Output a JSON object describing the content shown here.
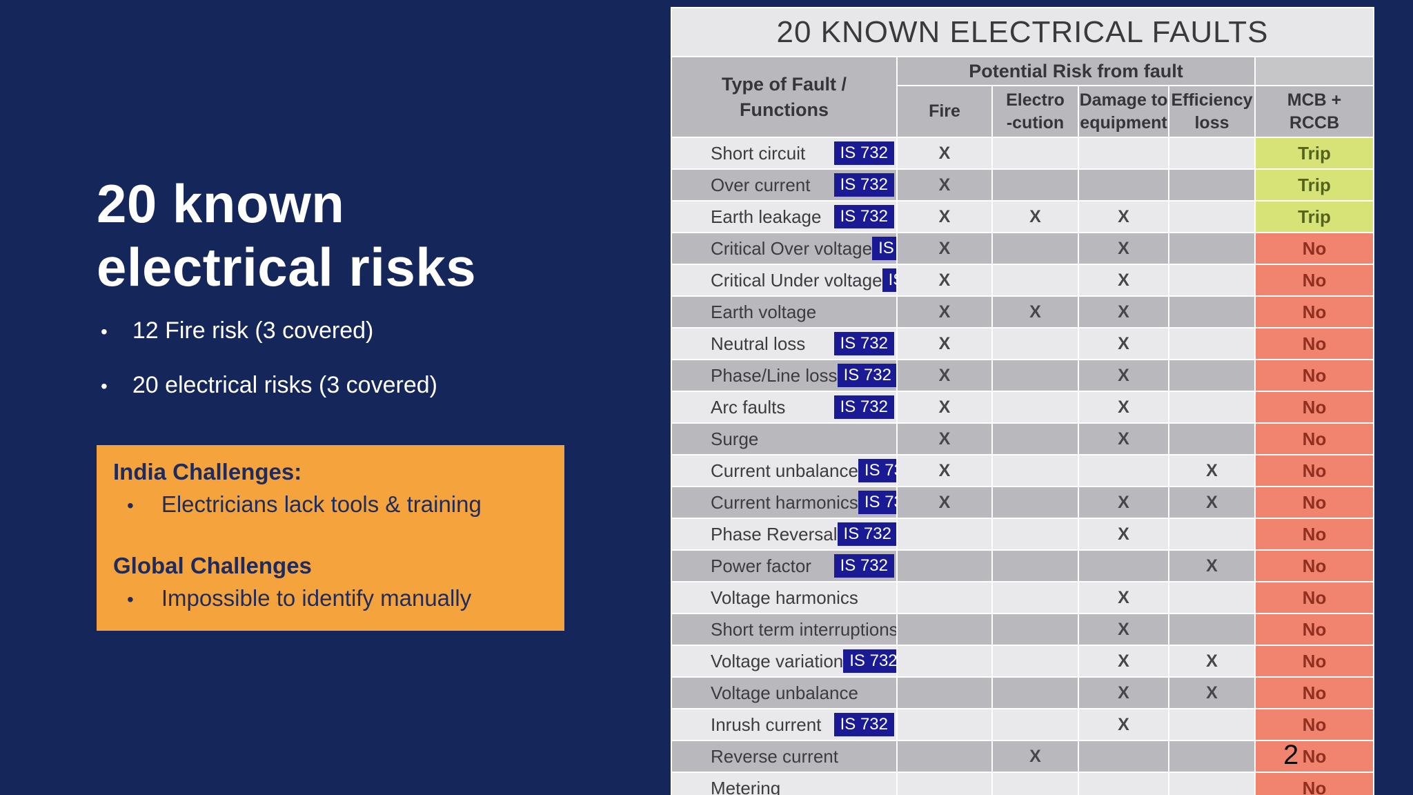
{
  "slide": {
    "title_lines": [
      "20 known",
      "electrical risks"
    ],
    "bullets": [
      "12 Fire risk (3 covered)",
      "20 electrical risks (3 covered)"
    ],
    "challenge_box": {
      "sections": [
        {
          "heading": "India Challenges:",
          "bullets": [
            "Electricians lack tools & training"
          ]
        },
        {
          "heading": "Global Challenges",
          "bullets": [
            "Impossible to identify manually"
          ]
        }
      ]
    },
    "page_number": "2"
  },
  "table": {
    "title": "20 KNOWN ELECTRICAL FAULTS",
    "fault_header_lines": [
      "Type of Fault /",
      "Functions"
    ],
    "group_header": "Potential Risk from fault",
    "risk_columns": [
      [
        "Fire"
      ],
      [
        "Electro",
        "-cution"
      ],
      [
        "Damage to",
        "equipment"
      ],
      [
        "Efficiency",
        "loss"
      ]
    ],
    "mcb_header_lines": [
      "MCB +",
      "RCCB"
    ],
    "badge_label": "IS 732",
    "x_mark": "X",
    "rows": [
      {
        "name": "Short circuit",
        "is732": true,
        "risks": [
          1,
          0,
          0,
          0
        ],
        "mcb": "Trip"
      },
      {
        "name": "Over current",
        "is732": true,
        "risks": [
          1,
          0,
          0,
          0
        ],
        "mcb": "Trip"
      },
      {
        "name": "Earth leakage",
        "is732": true,
        "risks": [
          1,
          1,
          1,
          0
        ],
        "mcb": "Trip"
      },
      {
        "name": "Critical Over voltage",
        "is732": true,
        "risks": [
          1,
          0,
          1,
          0
        ],
        "mcb": "No"
      },
      {
        "name": "Critical Under voltage",
        "is732": true,
        "risks": [
          1,
          0,
          1,
          0
        ],
        "mcb": "No"
      },
      {
        "name": "Earth voltage",
        "is732": false,
        "risks": [
          1,
          1,
          1,
          0
        ],
        "mcb": "No"
      },
      {
        "name": "Neutral loss",
        "is732": true,
        "risks": [
          1,
          0,
          1,
          0
        ],
        "mcb": "No"
      },
      {
        "name": "Phase/Line loss",
        "is732": true,
        "risks": [
          1,
          0,
          1,
          0
        ],
        "mcb": "No"
      },
      {
        "name": "Arc faults",
        "is732": true,
        "risks": [
          1,
          0,
          1,
          0
        ],
        "mcb": "No"
      },
      {
        "name": "Surge",
        "is732": false,
        "risks": [
          1,
          0,
          1,
          0
        ],
        "mcb": "No"
      },
      {
        "name": "Current unbalance",
        "is732": true,
        "risks": [
          1,
          0,
          0,
          1
        ],
        "mcb": "No"
      },
      {
        "name": "Current harmonics",
        "is732": true,
        "risks": [
          1,
          0,
          1,
          1
        ],
        "mcb": "No"
      },
      {
        "name": "Phase Reversal",
        "is732": true,
        "risks": [
          0,
          0,
          1,
          0
        ],
        "mcb": "No"
      },
      {
        "name": "Power factor",
        "is732": true,
        "risks": [
          0,
          0,
          0,
          1
        ],
        "mcb": "No"
      },
      {
        "name": "Voltage harmonics",
        "is732": false,
        "risks": [
          0,
          0,
          1,
          0
        ],
        "mcb": "No"
      },
      {
        "name": "Short term interruptions",
        "is732": false,
        "risks": [
          0,
          0,
          1,
          0
        ],
        "mcb": "No"
      },
      {
        "name": "Voltage variation",
        "is732": true,
        "risks": [
          0,
          0,
          1,
          1
        ],
        "mcb": "No"
      },
      {
        "name": "Voltage unbalance",
        "is732": false,
        "risks": [
          0,
          0,
          1,
          1
        ],
        "mcb": "No"
      },
      {
        "name": "Inrush current",
        "is732": true,
        "risks": [
          0,
          0,
          1,
          0
        ],
        "mcb": "No"
      },
      {
        "name": "Reverse current",
        "is732": false,
        "risks": [
          0,
          1,
          0,
          0
        ],
        "mcb": "No"
      },
      {
        "name": "Metering",
        "is732": false,
        "risks": [
          0,
          0,
          0,
          0
        ],
        "mcb": "No"
      }
    ]
  },
  "colors": {
    "background_navy": "#15265B",
    "accent_orange": "#F5A33C",
    "box_text_navy": "#1E2B5C",
    "badge_blue": "#1A1A94",
    "trip_green_bg": "#D7E377",
    "trip_text": "#55631F",
    "no_red_bg": "#F0846F",
    "no_text": "#8F2F1F",
    "row_light": "#E9E9EC",
    "row_dark": "#B9B9BD",
    "title_bar_gray": "#E7E7EA"
  }
}
